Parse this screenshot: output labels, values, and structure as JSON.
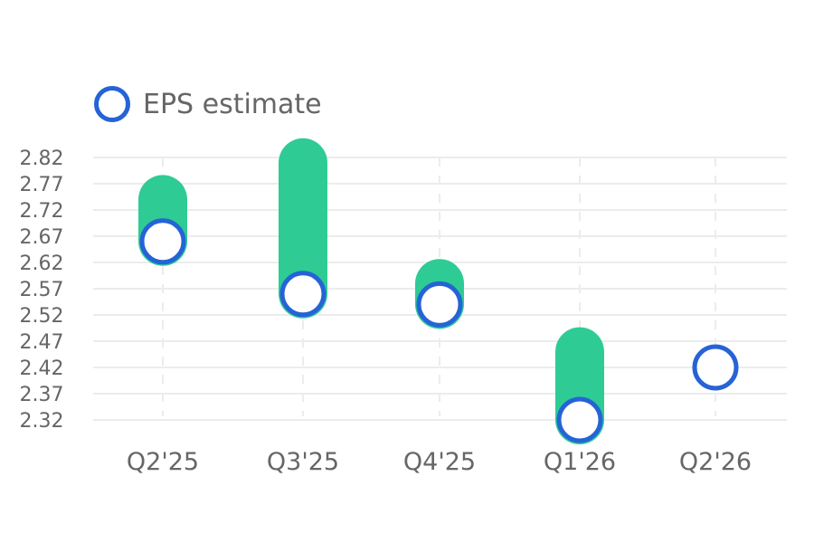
{
  "legend": {
    "series_label": "EPS estimate"
  },
  "colors": {
    "estimate_ring": "#2563d6",
    "bar": "#2ecc94",
    "grid": "#ececec",
    "text": "#666666"
  },
  "chart_data": {
    "type": "bar",
    "categories": [
      "Q2'25",
      "Q3'25",
      "Q4'25",
      "Q1'26",
      "Q2'26"
    ],
    "series": [
      {
        "name": "EPS estimate",
        "values": [
          2.66,
          2.56,
          2.54,
          2.32,
          2.42
        ]
      },
      {
        "values": [
          2.74,
          2.81,
          2.58,
          2.45,
          null
        ]
      }
    ],
    "yticks": [
      "2.32",
      "2.37",
      "2.42",
      "2.47",
      "2.52",
      "2.57",
      "2.62",
      "2.67",
      "2.72",
      "2.77",
      "2.82"
    ],
    "ylim": [
      2.32,
      2.82
    ],
    "grid": true,
    "legend_position": "top-left"
  }
}
